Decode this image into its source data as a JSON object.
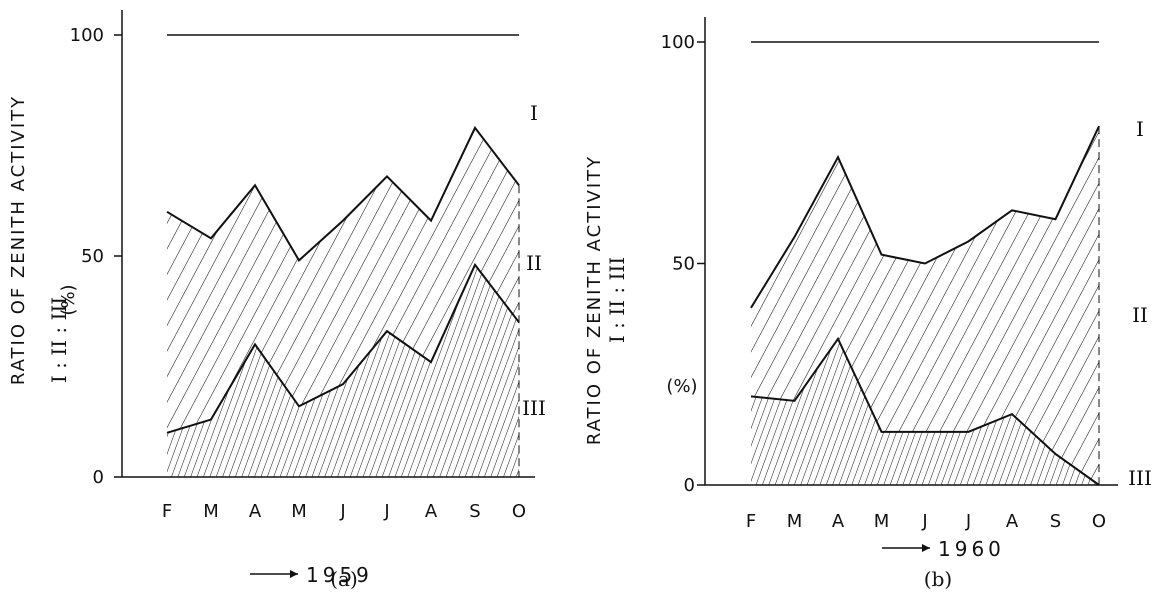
{
  "chart_data": [
    {
      "type": "area",
      "caption": "(a)",
      "ylabel": "RATIO OF ZENITH ACTIVITY",
      "ylabel_sub": "I : II : III",
      "yunit": "(%)",
      "xlabel_year": "1959",
      "categories": [
        "F",
        "M",
        "A",
        "M",
        "J",
        "J",
        "A",
        "S",
        "O"
      ],
      "yticks": [
        "0",
        "50",
        "100"
      ],
      "ylim": [
        0,
        100
      ],
      "top_line": 100,
      "regions": [
        "I",
        "II",
        "III"
      ],
      "series": [
        {
          "name": "I : II boundary",
          "values": [
            60,
            54,
            66,
            49,
            58,
            68,
            58,
            79,
            66
          ]
        },
        {
          "name": "II : III boundary",
          "values": [
            10,
            13,
            30,
            16,
            21,
            33,
            26,
            48,
            35
          ]
        }
      ]
    },
    {
      "type": "area",
      "caption": "(b)",
      "ylabel": "RATIO OF ZENITH ACTIVITY",
      "ylabel_sub": "I : II : III",
      "yunit": "(%)",
      "xlabel_year": "1960",
      "categories": [
        "F",
        "M",
        "A",
        "M",
        "J",
        "J",
        "A",
        "S",
        "O"
      ],
      "yticks": [
        "0",
        "50",
        "100"
      ],
      "ylim": [
        0,
        100
      ],
      "top_line": 100,
      "regions": [
        "I",
        "II",
        "III"
      ],
      "series": [
        {
          "name": "I : II boundary",
          "values": [
            40,
            56,
            74,
            52,
            50,
            55,
            62,
            60,
            81
          ]
        },
        {
          "name": "II : III boundary",
          "values": [
            20,
            19,
            33,
            12,
            12,
            12,
            16,
            7,
            0
          ]
        }
      ]
    }
  ]
}
